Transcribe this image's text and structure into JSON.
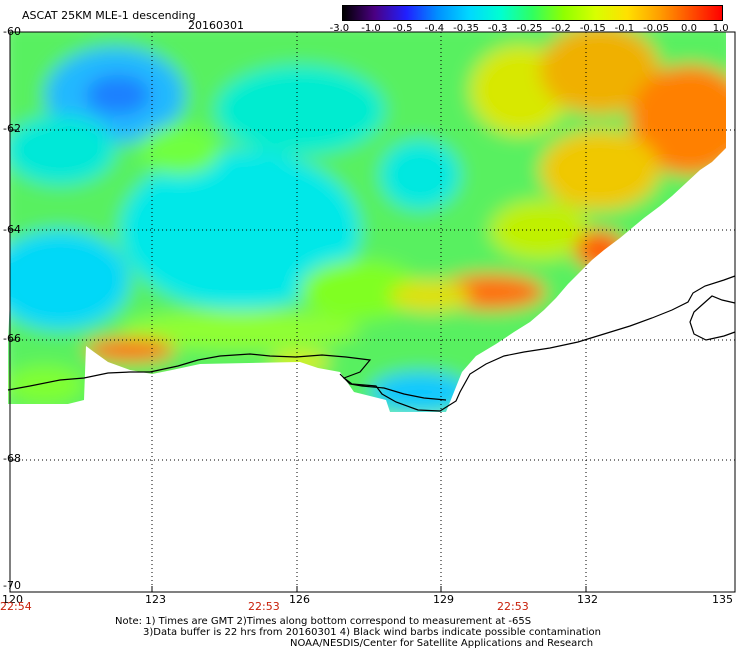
{
  "header": {
    "product": "ASCAT 25KM MLE-1 descending",
    "date": "20160301"
  },
  "colorbar": {
    "labels": [
      "-3.0",
      "-1.0",
      "-0.5",
      "-0.4",
      "-0.35",
      "-0.3",
      "-0.25",
      "-0.2",
      "-0.15",
      "-0.1",
      "-0.05",
      "0.0",
      "1.0"
    ],
    "colors": [
      "#000000",
      "#4b0082",
      "#2020ff",
      "#0090ff",
      "#00d8ff",
      "#00ffd0",
      "#30ff60",
      "#90ff00",
      "#d8ff00",
      "#ffe000",
      "#ffa000",
      "#ff5000",
      "#ff0000"
    ]
  },
  "axes": {
    "lon_labels": [
      "120",
      "123",
      "126",
      "129",
      "132",
      "135"
    ],
    "lat_labels": [
      "-60",
      "-62",
      "-64",
      "-66",
      "-68",
      "-70"
    ],
    "lon_range": [
      120,
      135
    ],
    "lat_range": [
      -60,
      -70
    ]
  },
  "times": [
    "22:54",
    "22:53",
    "22:53"
  ],
  "notes": [
    "Note: 1) Times are GMT 2)Times along bottom correspond to measurement at -65S",
    "3)Data buffer is 22 hrs from 20160301 4) Black wind barbs indicate possible contamination",
    "NOAA/NESDIS/Center for Satellite Applications and Research"
  ]
}
